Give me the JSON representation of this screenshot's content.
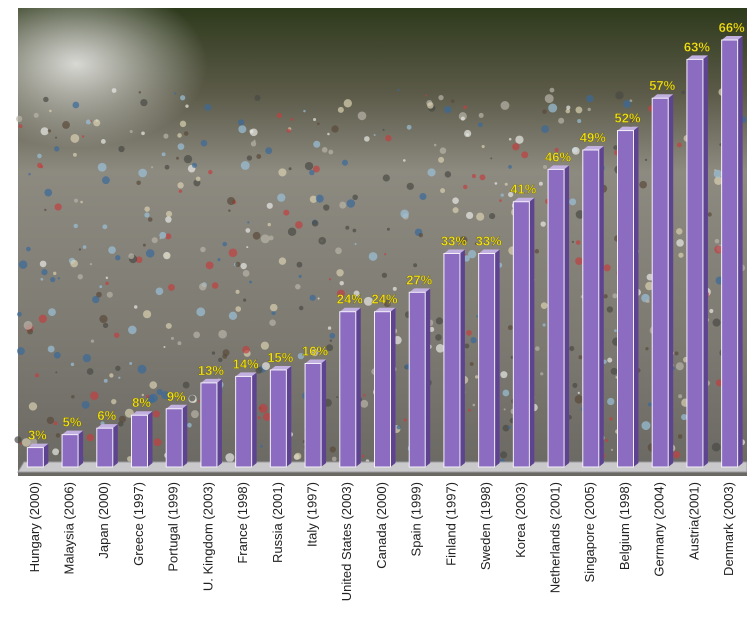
{
  "chart_data": {
    "type": "bar",
    "categories": [
      "Hungary (2000)",
      "Malaysia (2006)",
      "Japan (2000)",
      "Greece (1997)",
      "Portugal (1999)",
      "U. Kingdom (2003)",
      "France (1998)",
      "Russia (2001)",
      "Italy (1997)",
      "United States (2003)",
      "Canada (2000)",
      "Spain (1999)",
      "Finland (1997)",
      "Sweden (1998)",
      "Korea (2003)",
      "Netherlands (2001)",
      "Singapore (2005)",
      "Belgium (1998)",
      "Germany (2004)",
      "Austria(2001)",
      "Denmark (2003)"
    ],
    "values": [
      3,
      5,
      6,
      8,
      9,
      13,
      14,
      15,
      16,
      24,
      24,
      27,
      33,
      33,
      41,
      46,
      49,
      52,
      57,
      63,
      66
    ],
    "value_labels": [
      "3%",
      "5%",
      "6%",
      "8%",
      "9%",
      "13%",
      "14%",
      "15%",
      "16%",
      "24%",
      "24%",
      "27%",
      "33%",
      "33%",
      "41%",
      "46%",
      "49%",
      "52%",
      "57%",
      "63%",
      "66%"
    ],
    "color": "#8b6cc0"
  }
}
